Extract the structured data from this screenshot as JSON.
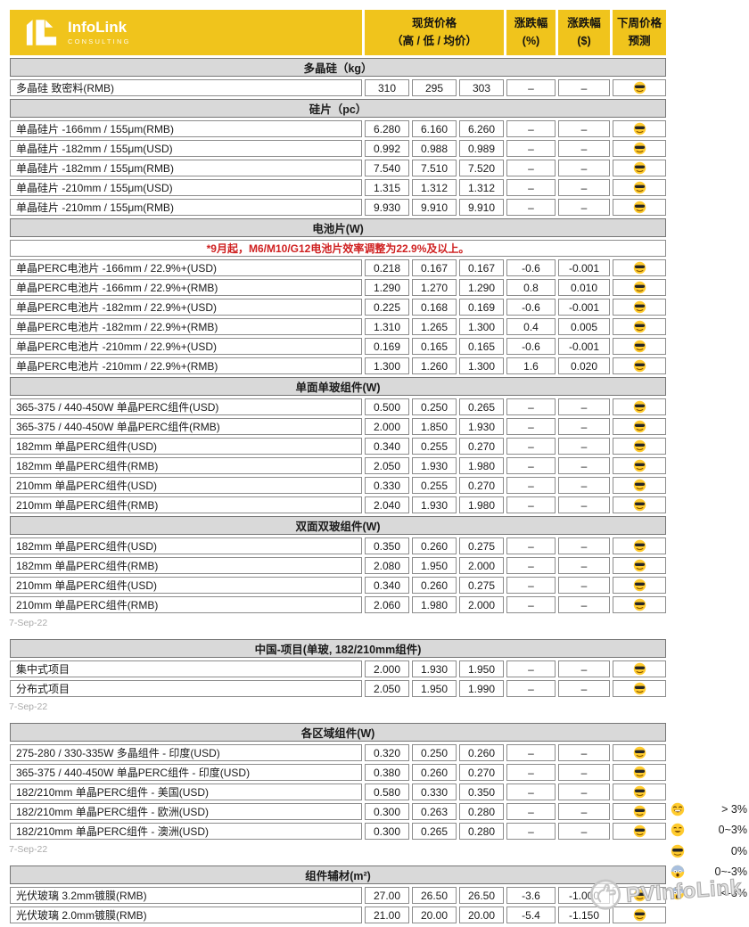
{
  "brand": {
    "name": "InfoLink",
    "tagline": "CONSULTING"
  },
  "columns": {
    "spot": "现货价格",
    "spot_sub": "（高 / 低 / 均价）",
    "pct": "涨跌幅",
    "pct_sub": "(%)",
    "usd": "涨跌幅",
    "usd_sub": "($)",
    "forecast": "下周价格",
    "forecast_sub": "预测"
  },
  "no_change_symbol": "–",
  "forecast_icon": "sunglasses-emoji",
  "blocks": [
    {
      "brand_header": true,
      "date": "7-Sep-22",
      "sections": [
        {
          "title": "多晶硅（kg）",
          "rows": [
            [
              "多晶硅 致密料(RMB)",
              "310",
              "295",
              "303",
              "–",
              "–"
            ]
          ]
        },
        {
          "title": "硅片（pc）",
          "rows": [
            [
              "单晶硅片 -166mm / 155μm(RMB)",
              "6.280",
              "6.160",
              "6.260",
              "–",
              "–"
            ],
            [
              "单晶硅片 -182mm / 155μm(USD)",
              "0.992",
              "0.988",
              "0.989",
              "–",
              "–"
            ],
            [
              "单晶硅片 -182mm / 155μm(RMB)",
              "7.540",
              "7.510",
              "7.520",
              "–",
              "–"
            ],
            [
              "单晶硅片 -210mm / 155μm(USD)",
              "1.315",
              "1.312",
              "1.312",
              "–",
              "–"
            ],
            [
              "单晶硅片 -210mm / 155μm(RMB)",
              "9.930",
              "9.910",
              "9.910",
              "–",
              "–"
            ]
          ]
        },
        {
          "title": "电池片(W)",
          "note": "*9月起，M6/M10/G12电池片效率调整为22.9%及以上。",
          "rows": [
            [
              "单晶PERC电池片 -166mm / 22.9%+(USD)",
              "0.218",
              "0.167",
              "0.167",
              "-0.6",
              "-0.001"
            ],
            [
              "单晶PERC电池片 -166mm / 22.9%+(RMB)",
              "1.290",
              "1.270",
              "1.290",
              "0.8",
              "0.010"
            ],
            [
              "单晶PERC电池片 -182mm / 22.9%+(USD)",
              "0.225",
              "0.168",
              "0.169",
              "-0.6",
              "-0.001"
            ],
            [
              "单晶PERC电池片 -182mm / 22.9%+(RMB)",
              "1.310",
              "1.265",
              "1.300",
              "0.4",
              "0.005"
            ],
            [
              "单晶PERC电池片 -210mm / 22.9%+(USD)",
              "0.169",
              "0.165",
              "0.165",
              "-0.6",
              "-0.001"
            ],
            [
              "单晶PERC电池片 -210mm / 22.9%+(RMB)",
              "1.300",
              "1.260",
              "1.300",
              "1.6",
              "0.020"
            ]
          ]
        },
        {
          "title": "单面单玻组件(W)",
          "rows": [
            [
              "365-375 / 440-450W 单晶PERC组件(USD)",
              "0.500",
              "0.250",
              "0.265",
              "–",
              "–"
            ],
            [
              "365-375 / 440-450W 单晶PERC组件(RMB)",
              "2.000",
              "1.850",
              "1.930",
              "–",
              "–"
            ],
            [
              "182mm 单晶PERC组件(USD)",
              "0.340",
              "0.255",
              "0.270",
              "–",
              "–"
            ],
            [
              "182mm 单晶PERC组件(RMB)",
              "2.050",
              "1.930",
              "1.980",
              "–",
              "–"
            ],
            [
              "210mm 单晶PERC组件(USD)",
              "0.330",
              "0.255",
              "0.270",
              "–",
              "–"
            ],
            [
              "210mm 单晶PERC组件(RMB)",
              "2.040",
              "1.930",
              "1.980",
              "–",
              "–"
            ]
          ]
        },
        {
          "title": "双面双玻组件(W)",
          "rows": [
            [
              "182mm 单晶PERC组件(USD)",
              "0.350",
              "0.260",
              "0.275",
              "–",
              "–"
            ],
            [
              "182mm 单晶PERC组件(RMB)",
              "2.080",
              "1.950",
              "2.000",
              "–",
              "–"
            ],
            [
              "210mm 单晶PERC组件(USD)",
              "0.340",
              "0.260",
              "0.275",
              "–",
              "–"
            ],
            [
              "210mm 单晶PERC组件(RMB)",
              "2.060",
              "1.980",
              "2.000",
              "–",
              "–"
            ]
          ]
        }
      ]
    },
    {
      "date": "7-Sep-22",
      "sections": [
        {
          "title": "中国-项目(单玻, 182/210mm组件)",
          "rows": [
            [
              "集中式项目",
              "2.000",
              "1.930",
              "1.950",
              "–",
              "–"
            ],
            [
              "分布式项目",
              "2.050",
              "1.950",
              "1.990",
              "–",
              "–"
            ]
          ]
        }
      ]
    },
    {
      "date": "7-Sep-22",
      "sections": [
        {
          "title": "各区域组件(W)",
          "rows": [
            [
              "275-280 / 330-335W 多晶组件 - 印度(USD)",
              "0.320",
              "0.250",
              "0.260",
              "–",
              "–"
            ],
            [
              "365-375 / 440-450W 单晶PERC组件 - 印度(USD)",
              "0.380",
              "0.260",
              "0.270",
              "–",
              "–"
            ],
            [
              "182/210mm 单晶PERC组件 - 美国(USD)",
              "0.580",
              "0.330",
              "0.350",
              "–",
              "–"
            ],
            [
              "182/210mm 单晶PERC组件 - 欧洲(USD)",
              "0.300",
              "0.263",
              "0.280",
              "–",
              "–"
            ],
            [
              "182/210mm 单晶PERC组件 - 澳洲(USD)",
              "0.300",
              "0.265",
              "0.280",
              "–",
              "–"
            ]
          ]
        }
      ]
    },
    {
      "date": "7-Sep-22",
      "sections": [
        {
          "title": "组件辅材(m²)",
          "rows": [
            [
              "光伏玻璃 3.2mm镀膜(RMB)",
              "27.00",
              "26.50",
              "26.50",
              "-3.6",
              "-1.000"
            ],
            [
              "光伏玻璃 2.0mm镀膜(RMB)",
              "21.00",
              "20.00",
              "20.00",
              "-5.4",
              "-1.150"
            ]
          ]
        }
      ]
    }
  ],
  "legend": [
    {
      "icon": "grin-emoji",
      "label": "> 3%"
    },
    {
      "icon": "smile-emoji",
      "label": "0~3%"
    },
    {
      "icon": "sunglasses-emoji",
      "label": "0%"
    },
    {
      "icon": "fearful-emoji",
      "label": "0~-3%"
    },
    {
      "icon": "scream-emoji",
      "label": "<-3%"
    }
  ],
  "watermark": {
    "text": "PVInfoLink"
  },
  "colors": {
    "brand_yellow": "#F0C41C",
    "section_gray": "#D9D9D9",
    "negative": "#E02B2B",
    "positive": "#2E9184",
    "note_red": "#CF2020"
  }
}
